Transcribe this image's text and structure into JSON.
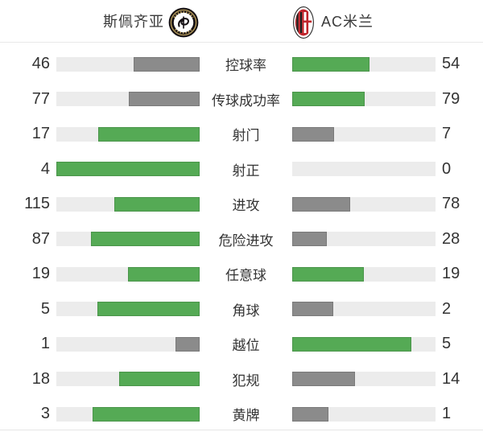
{
  "colors": {
    "win_fill": "#55aa55",
    "lose_fill": "#8b8b8b",
    "track": "#ececec",
    "text": "#333333",
    "divider": "#e8e8e8",
    "spezia_black": "#161114",
    "spezia_gold": "#b49a5a",
    "milan_red": "#c0242b",
    "milan_black": "#1d1d1b"
  },
  "header": {
    "home": {
      "name": "斯佩齐亚",
      "logo_icon": "spezia-crest"
    },
    "away": {
      "name": "AC米兰",
      "logo_icon": "ac-milan-crest"
    }
  },
  "stats": {
    "rows": [
      {
        "label": "控球率",
        "home": 46,
        "away": 54,
        "home_color": "gray",
        "away_color": "green"
      },
      {
        "label": "传球成功率",
        "home": 77,
        "away": 79,
        "home_color": "gray",
        "away_color": "green"
      },
      {
        "label": "射门",
        "home": 17,
        "away": 7,
        "home_color": "green",
        "away_color": "gray"
      },
      {
        "label": "射正",
        "home": 4,
        "away": 0,
        "home_color": "green",
        "away_color": "none"
      },
      {
        "label": "进攻",
        "home": 115,
        "away": 78,
        "home_color": "green",
        "away_color": "gray"
      },
      {
        "label": "危险进攻",
        "home": 87,
        "away": 28,
        "home_color": "green",
        "away_color": "gray"
      },
      {
        "label": "任意球",
        "home": 19,
        "away": 19,
        "home_color": "green",
        "away_color": "green"
      },
      {
        "label": "角球",
        "home": 5,
        "away": 2,
        "home_color": "green",
        "away_color": "gray"
      },
      {
        "label": "越位",
        "home": 1,
        "away": 5,
        "home_color": "gray",
        "away_color": "green"
      },
      {
        "label": "犯规",
        "home": 18,
        "away": 14,
        "home_color": "green",
        "away_color": "gray"
      },
      {
        "label": "黄牌",
        "home": 3,
        "away": 1,
        "home_color": "green",
        "away_color": "gray"
      }
    ]
  },
  "chart_data": {
    "type": "bar",
    "orientation": "horizontal-paired",
    "categories": [
      "控球率",
      "传球成功率",
      "射门",
      "射正",
      "进攻",
      "危险进攻",
      "任意球",
      "角球",
      "越位",
      "犯规",
      "黄牌"
    ],
    "series": [
      {
        "name": "斯佩齐亚",
        "values": [
          46,
          77,
          17,
          4,
          115,
          87,
          19,
          5,
          1,
          18,
          3
        ]
      },
      {
        "name": "AC米兰",
        "values": [
          54,
          79,
          7,
          0,
          78,
          28,
          19,
          2,
          5,
          14,
          1
        ]
      }
    ],
    "notes": "Each paired bar fill length = value / (home+away); higher value shown green (#55aa55), lower gray (#8b8b8b), ties both green; bars grow from the center outward on light gray tracks"
  }
}
